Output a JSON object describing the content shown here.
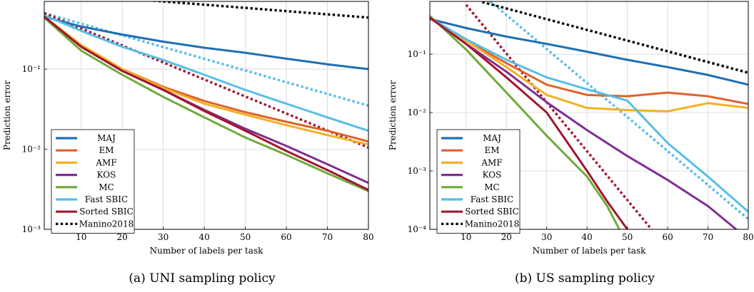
{
  "chart_data": [
    {
      "type": "line",
      "caption": "(a) UNI sampling policy",
      "xlabel": "Number of labels per task",
      "ylabel": "Prediction error",
      "xlim": [
        1,
        80
      ],
      "ylim": [
        0.001,
        0.7
      ],
      "yscale": "log",
      "grid": true,
      "legend_position": "bottom-left",
      "x_ticks": [
        10,
        20,
        30,
        40,
        50,
        60,
        70,
        80
      ],
      "x_tick_labels": [
        "10",
        "20",
        "30",
        "40",
        "50",
        "60",
        "70",
        "80"
      ],
      "y_ticks": [
        0.001,
        0.01,
        0.1
      ],
      "y_tick_labels": [
        "10⁻³",
        "10⁻²",
        "10⁻¹"
      ],
      "series": [
        {
          "name": "MAJ",
          "color": "#1f6fb4",
          "style": "solid",
          "x": [
            1,
            10,
            20,
            30,
            40,
            50,
            60,
            70,
            80
          ],
          "y": [
            0.45,
            0.34,
            0.27,
            0.22,
            0.185,
            0.16,
            0.135,
            0.115,
            0.1
          ]
        },
        {
          "name": "EM",
          "color": "#e0622a",
          "style": "solid",
          "x": [
            1,
            10,
            20,
            30,
            40,
            50,
            60,
            70,
            80
          ],
          "y": [
            0.45,
            0.2,
            0.1,
            0.06,
            0.04,
            0.029,
            0.022,
            0.017,
            0.0125
          ]
        },
        {
          "name": "AMF",
          "color": "#f2b025",
          "style": "solid",
          "x": [
            1,
            10,
            20,
            30,
            40,
            50,
            60,
            70,
            80
          ],
          "y": [
            0.45,
            0.2,
            0.1,
            0.058,
            0.037,
            0.027,
            0.02,
            0.015,
            0.0115
          ]
        },
        {
          "name": "KOS",
          "color": "#7f2f92",
          "style": "solid",
          "x": [
            1,
            10,
            20,
            30,
            40,
            50,
            60,
            70,
            80
          ],
          "y": [
            0.45,
            0.19,
            0.095,
            0.055,
            0.031,
            0.018,
            0.011,
            0.0065,
            0.0038
          ]
        },
        {
          "name": "MC",
          "color": "#6fab3a",
          "style": "solid",
          "x": [
            1,
            10,
            20,
            30,
            40,
            50,
            60,
            70,
            80
          ],
          "y": [
            0.44,
            0.17,
            0.085,
            0.045,
            0.025,
            0.014,
            0.0085,
            0.005,
            0.003
          ]
        },
        {
          "name": "Fast SBIC",
          "color": "#58bde7",
          "style": "solid",
          "x": [
            1,
            10,
            20,
            30,
            40,
            50,
            60,
            70,
            80
          ],
          "y": [
            0.47,
            0.3,
            0.19,
            0.13,
            0.085,
            0.055,
            0.037,
            0.025,
            0.017
          ]
        },
        {
          "name": "Sorted SBIC",
          "color": "#a3162f",
          "style": "solid",
          "x": [
            1,
            10,
            20,
            30,
            40,
            50,
            60,
            70,
            80
          ],
          "y": [
            0.45,
            0.19,
            0.095,
            0.055,
            0.03,
            0.017,
            0.0095,
            0.0055,
            0.0031
          ]
        },
        {
          "name": "",
          "color": "#58bde7",
          "style": "dotted",
          "x": [
            1,
            80
          ],
          "y": [
            0.5,
            0.035
          ]
        },
        {
          "name": "",
          "color": "#a3162f",
          "style": "dotted",
          "x": [
            1,
            80
          ],
          "y": [
            0.5,
            0.0105
          ]
        },
        {
          "name": "Manino2018",
          "color": "#000000",
          "style": "dotted",
          "x": [
            17,
            80
          ],
          "y": [
            0.79,
            0.44
          ]
        }
      ]
    },
    {
      "type": "line",
      "caption": "(b) US sampling policy",
      "xlabel": "Number of labels per task",
      "ylabel": "Prediction error",
      "xlim": [
        1,
        80
      ],
      "ylim": [
        0.0001,
        0.8
      ],
      "yscale": "log",
      "grid": true,
      "legend_position": "bottom-left",
      "x_ticks": [
        10,
        20,
        30,
        40,
        50,
        60,
        70,
        80
      ],
      "x_tick_labels": [
        "10",
        "20",
        "30",
        "40",
        "50",
        "60",
        "70",
        "80"
      ],
      "y_ticks": [
        0.0001,
        0.001,
        0.01,
        0.1
      ],
      "y_tick_labels": [
        "10⁻⁴",
        "10⁻³",
        "10⁻²",
        "10⁻¹"
      ],
      "series": [
        {
          "name": "MAJ",
          "color": "#1f6fb4",
          "style": "solid",
          "x": [
            1,
            10,
            20,
            30,
            40,
            50,
            60,
            70,
            80
          ],
          "y": [
            0.4,
            0.28,
            0.2,
            0.15,
            0.11,
            0.08,
            0.06,
            0.044,
            0.03
          ]
        },
        {
          "name": "EM",
          "color": "#e0622a",
          "style": "solid",
          "x": [
            1,
            10,
            20,
            30,
            40,
            50,
            60,
            70,
            80
          ],
          "y": [
            0.42,
            0.17,
            0.07,
            0.03,
            0.02,
            0.019,
            0.022,
            0.019,
            0.014
          ]
        },
        {
          "name": "AMF",
          "color": "#f2b025",
          "style": "solid",
          "x": [
            1,
            10,
            20,
            30,
            40,
            50,
            60,
            70,
            80
          ],
          "y": [
            0.42,
            0.17,
            0.06,
            0.02,
            0.012,
            0.011,
            0.0105,
            0.0145,
            0.012
          ]
        },
        {
          "name": "KOS",
          "color": "#7f2f92",
          "style": "solid",
          "x": [
            1,
            10,
            20,
            30,
            40,
            50,
            60,
            70,
            77
          ],
          "y": [
            0.42,
            0.15,
            0.05,
            0.015,
            0.005,
            0.0018,
            0.0007,
            0.00025,
            0.0001
          ]
        },
        {
          "name": "MC",
          "color": "#6fab3a",
          "style": "solid",
          "x": [
            1,
            10,
            20,
            30,
            40,
            45,
            48
          ],
          "y": [
            0.45,
            0.12,
            0.022,
            0.004,
            0.0008,
            0.00025,
            0.0001
          ]
        },
        {
          "name": "Fast SBIC",
          "color": "#58bde7",
          "style": "solid",
          "x": [
            1,
            10,
            20,
            30,
            40,
            50,
            60,
            70,
            80
          ],
          "y": [
            0.42,
            0.18,
            0.08,
            0.04,
            0.025,
            0.016,
            0.003,
            0.0008,
            0.0002
          ]
        },
        {
          "name": "Sorted SBIC",
          "color": "#a3162f",
          "style": "solid",
          "x": [
            1,
            10,
            20,
            30,
            40,
            45,
            50
          ],
          "y": [
            0.42,
            0.15,
            0.04,
            0.01,
            0.001,
            0.0003,
            0.0001
          ]
        },
        {
          "name": "",
          "color": "#58bde7",
          "style": "dotted",
          "x": [
            16,
            80
          ],
          "y": [
            0.8,
            0.00015
          ]
        },
        {
          "name": "",
          "color": "#a3162f",
          "style": "dotted",
          "x": [
            10,
            56
          ],
          "y": [
            0.7,
            0.0001
          ]
        },
        {
          "name": "Manino2018",
          "color": "#000000",
          "style": "dotted",
          "x": [
            14,
            80
          ],
          "y": [
            0.78,
            0.048
          ]
        }
      ]
    }
  ]
}
